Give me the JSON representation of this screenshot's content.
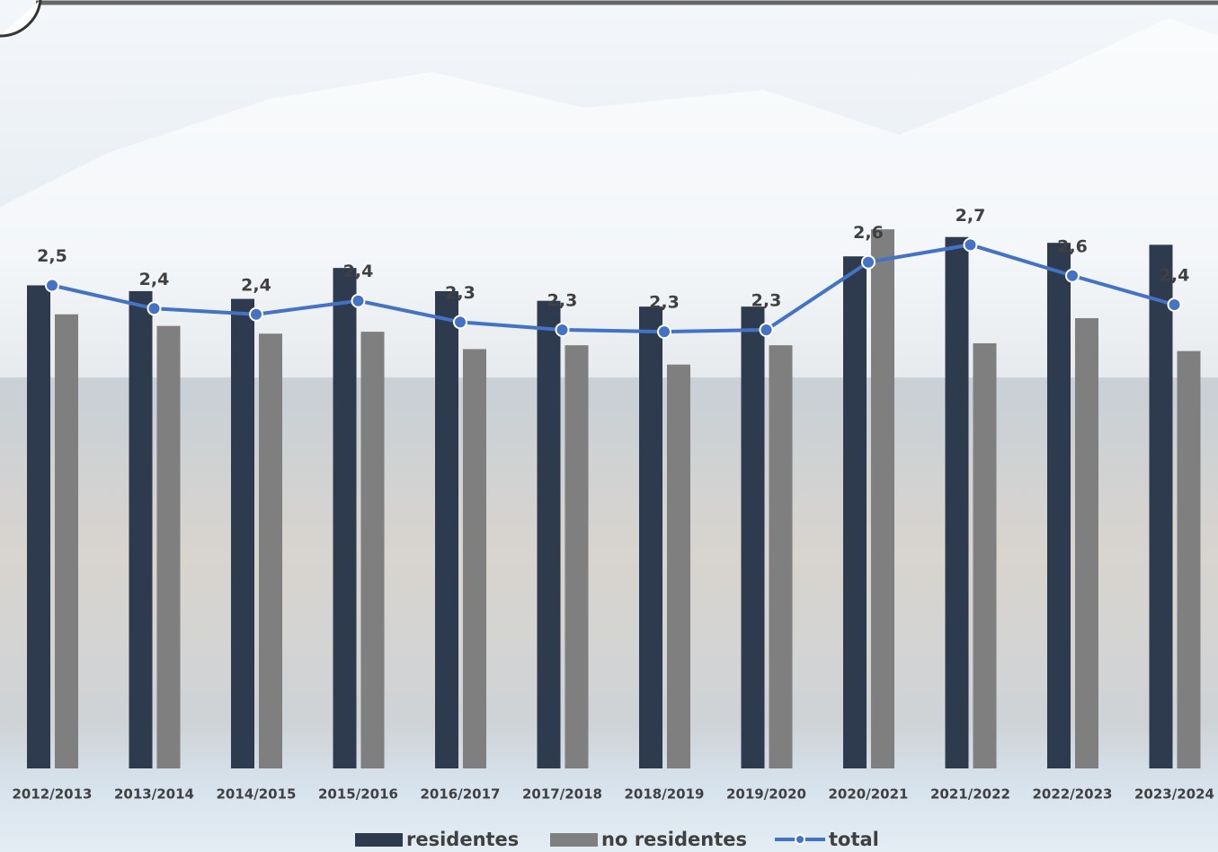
{
  "chart_data": {
    "type": "bar-line",
    "categories": [
      "2012/2013",
      "2013/2014",
      "2014/2015",
      "2015/2016",
      "2016/2017",
      "2017/2018",
      "2018/2019",
      "2019/2020",
      "2020/2021",
      "2021/2022",
      "2022/2023",
      "2023/2024"
    ],
    "series": [
      {
        "name": "residentes",
        "type": "bar",
        "color": "#2e3a4e",
        "values": [
          2.5,
          2.47,
          2.43,
          2.59,
          2.47,
          2.42,
          2.39,
          2.39,
          2.65,
          2.75,
          2.72,
          2.71
        ]
      },
      {
        "name": "no residentes",
        "type": "bar",
        "color": "#7f7f7f",
        "values": [
          2.35,
          2.29,
          2.25,
          2.26,
          2.17,
          2.19,
          2.09,
          2.19,
          2.79,
          2.2,
          2.33,
          2.16
        ]
      },
      {
        "name": "total",
        "type": "line",
        "color": "#4472c4",
        "values": [
          2.5,
          2.38,
          2.35,
          2.42,
          2.31,
          2.27,
          2.26,
          2.27,
          2.62,
          2.71,
          2.55,
          2.4
        ],
        "value_labels": [
          "2,5",
          "2,4",
          "2,4",
          "2,4",
          "2,3",
          "2,3",
          "2,3",
          "2,3",
          "2,6",
          "2,7",
          "2,6",
          "2,4"
        ]
      }
    ],
    "ylim": [
      0,
      3.8
    ]
  }
}
